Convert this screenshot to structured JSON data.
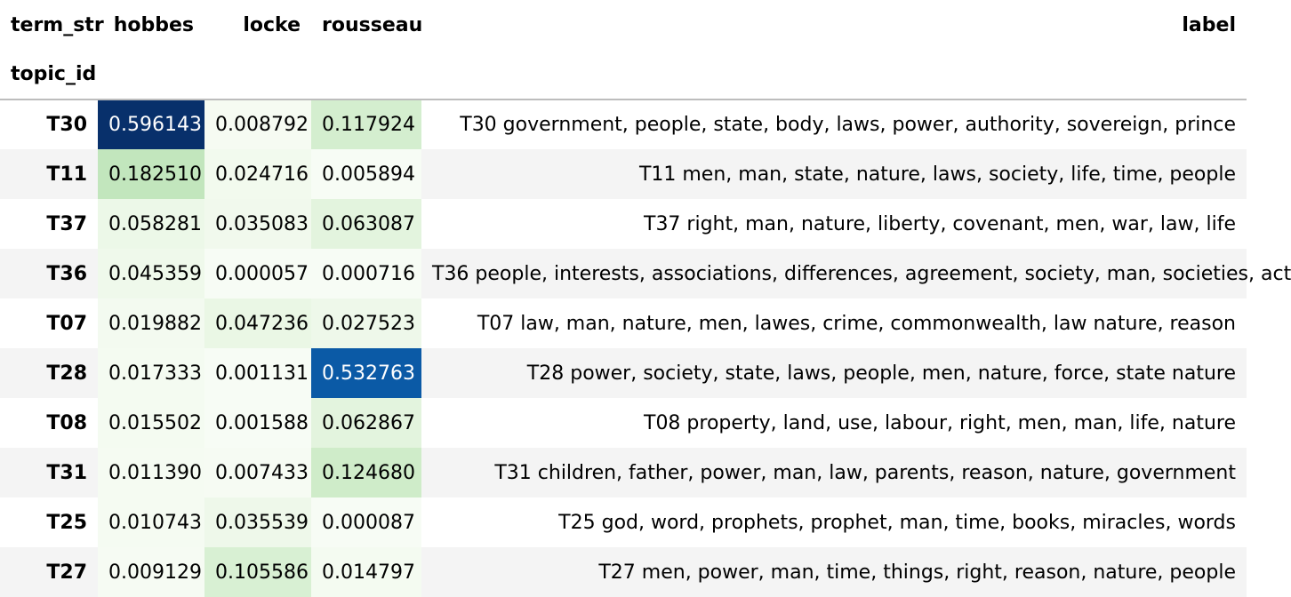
{
  "header": {
    "columns_name": "term_str",
    "index_name": "topic_id",
    "columns": [
      "hobbes",
      "locke",
      "rousseau",
      "label"
    ]
  },
  "rows": [
    {
      "id": "T30",
      "hobbes": "0.596143",
      "locke": "0.008792",
      "rousseau": "0.117924",
      "label": "T30 government, people, state, body, laws, power, authority, sovereign, prince",
      "colors": {
        "hobbes": "#08306b",
        "locke": "#f6fbf2",
        "rousseau": "#d4eecf"
      }
    },
    {
      "id": "T11",
      "hobbes": "0.182510",
      "locke": "0.024716",
      "rousseau": "0.005894",
      "label": "T11 men, man, state, nature, laws, society, life, time, people",
      "colors": {
        "hobbes": "#c2e6bd",
        "locke": "#f2faee",
        "rousseau": "#f7fcf5"
      }
    },
    {
      "id": "T37",
      "hobbes": "0.058281",
      "locke": "0.035083",
      "rousseau": "0.063087",
      "label": "T37 right, man, nature, liberty, covenant, men, war, law, life",
      "colors": {
        "hobbes": "#ecf8e8",
        "locke": "#f1f9ed",
        "rousseau": "#e3f4de"
      }
    },
    {
      "id": "T36",
      "hobbes": "0.045359",
      "locke": "0.000057",
      "rousseau": "0.000716",
      "label": "T36 people, interests, associations, differences, agreement, society, man, societies, act",
      "colors": {
        "hobbes": "#eff9eb",
        "locke": "#f7fcf5",
        "rousseau": "#f7fcf5"
      }
    },
    {
      "id": "T07",
      "hobbes": "0.019882",
      "locke": "0.047236",
      "rousseau": "0.027523",
      "label": "T07 law, man, nature, men, lawes, crime, commonwealth, law nature, reason",
      "colors": {
        "hobbes": "#f3faf0",
        "locke": "#eaf7e5",
        "rousseau": "#eef8ea"
      }
    },
    {
      "id": "T28",
      "hobbes": "0.017333",
      "locke": "0.001131",
      "rousseau": "0.532763",
      "label": "T28 power, society, state, laws, people, men, nature, force, state nature",
      "colors": {
        "hobbes": "#f4fbf1",
        "locke": "#f7fcf5",
        "rousseau": "#0b5aa6"
      }
    },
    {
      "id": "T08",
      "hobbes": "0.015502",
      "locke": "0.001588",
      "rousseau": "0.062867",
      "label": "T08 property, land, use, labour, right, men, man, life, nature",
      "colors": {
        "hobbes": "#f4fbf1",
        "locke": "#f7fcf5",
        "rousseau": "#e3f4de"
      }
    },
    {
      "id": "T31",
      "hobbes": "0.011390",
      "locke": "0.007433",
      "rousseau": "0.124680",
      "label": "T31 children, father, power, man, law, parents, reason, nature, government",
      "colors": {
        "hobbes": "#f5fbf2",
        "locke": "#f6fbf3",
        "rousseau": "#cfecc9"
      }
    },
    {
      "id": "T25",
      "hobbes": "0.010743",
      "locke": "0.035539",
      "rousseau": "0.000087",
      "label": "T25 god, word, prophets, prophet, man, time, books, miracles, words",
      "colors": {
        "hobbes": "#f5fbf2",
        "locke": "#eef8ea",
        "rousseau": "#f7fcf5"
      }
    },
    {
      "id": "T27",
      "hobbes": "0.009129",
      "locke": "0.105586",
      "rousseau": "0.014797",
      "label": "T27 men, power, man, time, things, right, reason, nature, people",
      "colors": {
        "hobbes": "#f6fbf3",
        "locke": "#d8f0d3",
        "rousseau": "#f4fbf1"
      }
    }
  ]
}
